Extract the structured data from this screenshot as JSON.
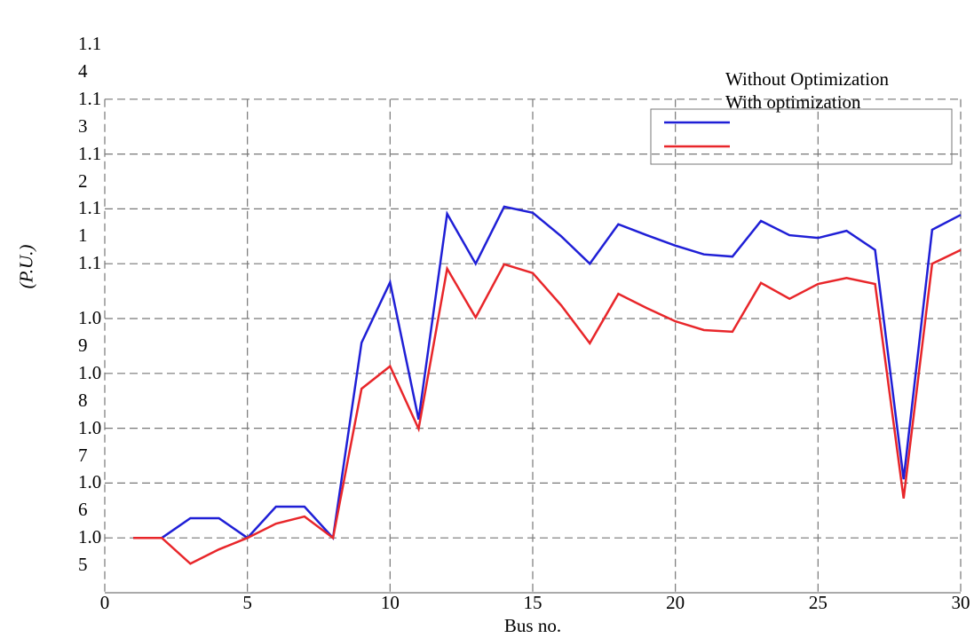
{
  "chart_data": {
    "type": "line",
    "x_label": "Bus no.",
    "y_label": "(P.U.)",
    "x": [
      1,
      2,
      3,
      4,
      5,
      6,
      7,
      8,
      9,
      10,
      11,
      12,
      13,
      14,
      15,
      16,
      17,
      18,
      19,
      20,
      21,
      22,
      23,
      24,
      25,
      26,
      27,
      28,
      29,
      30
    ],
    "series": [
      {
        "name": "Without Optimization",
        "color": "#1f1fd6",
        "values": [
          1.05,
          1.05,
          1.0536,
          1.0536,
          1.05,
          1.0557,
          1.0557,
          1.05,
          1.0856,
          1.0966,
          1.0716,
          1.1091,
          1.1,
          1.1104,
          1.1093,
          1.105,
          1.1,
          1.1072,
          1.1052,
          1.1033,
          1.1017,
          1.1013,
          1.1078,
          1.1052,
          1.1047,
          1.106,
          1.1025,
          1.0607,
          1.1062,
          1.1089
        ]
      },
      {
        "name": "With optimization",
        "color": "#e8262a",
        "values": [
          1.05,
          1.05,
          1.0453,
          1.0479,
          1.05,
          1.0526,
          1.0539,
          1.05,
          1.0772,
          1.0813,
          1.0699,
          1.0991,
          1.0902,
          1.0999,
          1.0983,
          1.0924,
          1.0855,
          1.0945,
          1.0919,
          1.0895,
          1.0879,
          1.0876,
          1.0965,
          1.0936,
          1.0963,
          1.0974,
          1.0963,
          1.0572,
          1.1,
          1.1025
        ]
      }
    ],
    "xlim": [
      0,
      30
    ],
    "xticks": [
      0,
      5,
      10,
      15,
      20,
      25,
      30
    ],
    "ylim": [
      1.04,
      1.14
    ],
    "yticks": [
      1.05,
      1.06,
      1.07,
      1.08,
      1.09,
      1.1,
      1.11,
      1.12,
      1.13,
      1.14
    ],
    "grid": true,
    "legend": "upper right"
  }
}
